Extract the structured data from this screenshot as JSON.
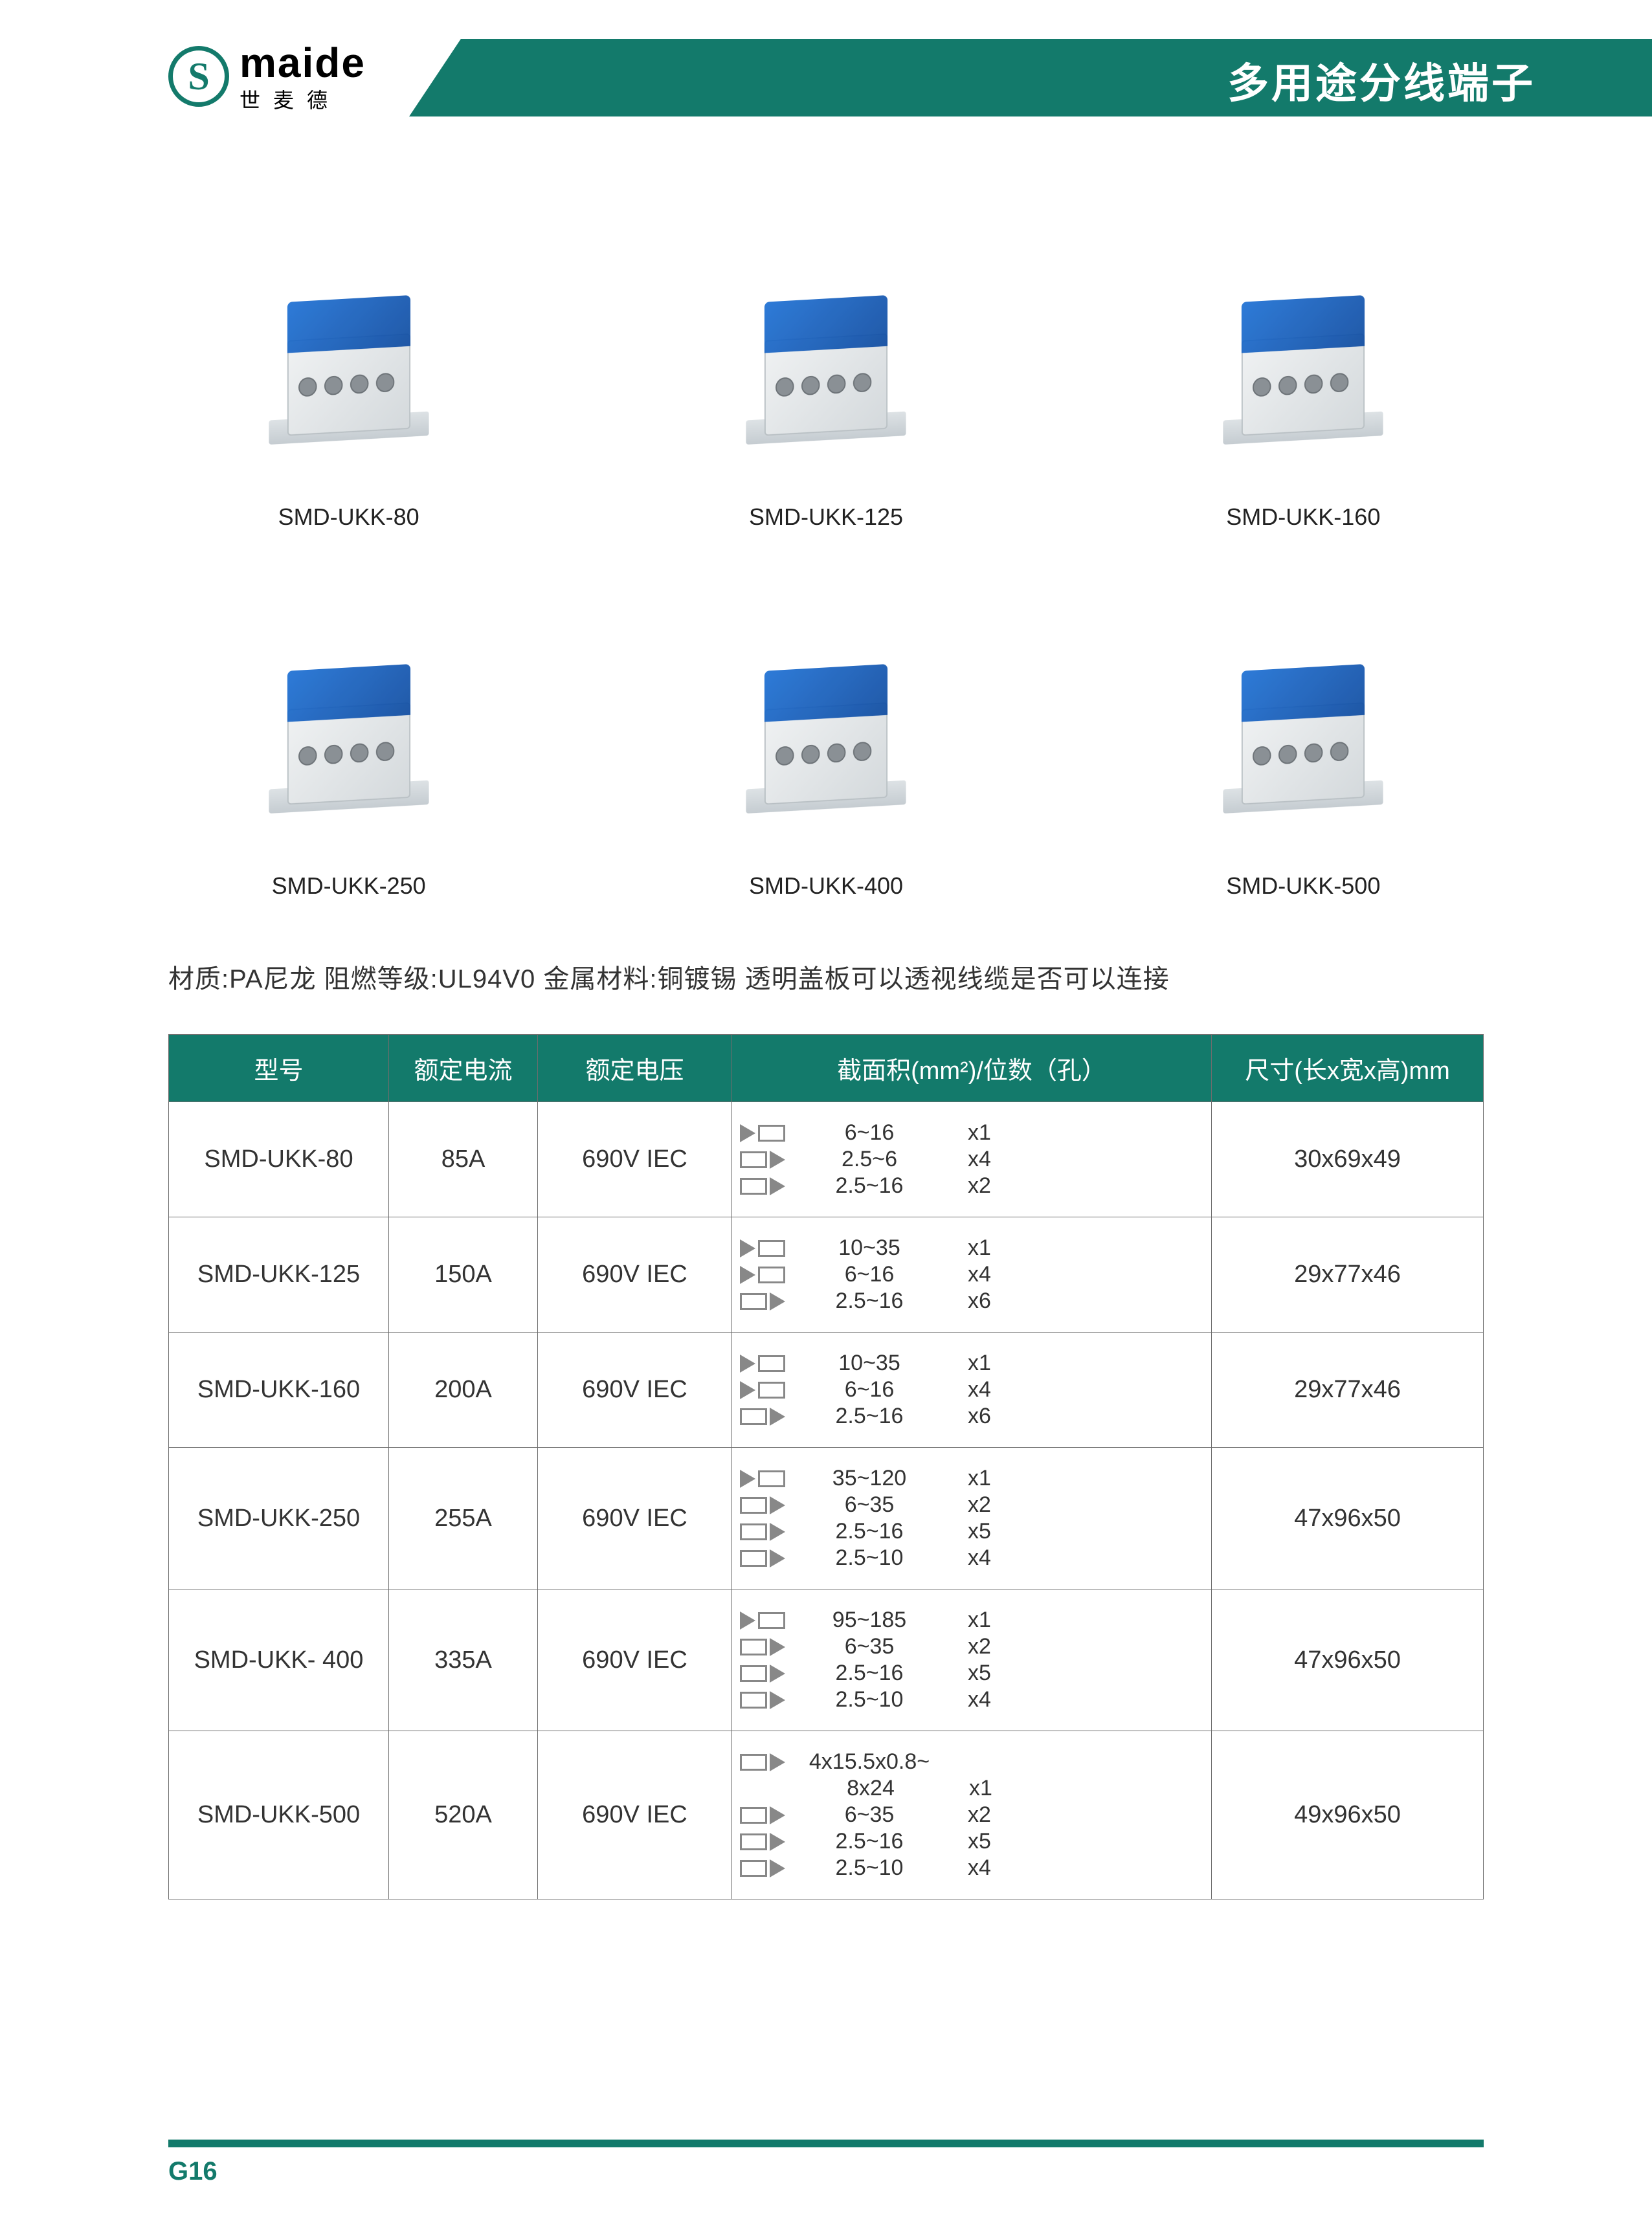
{
  "brand": {
    "mark": "S",
    "en": "maide",
    "cn": "世麦德"
  },
  "header_title": "多用途分线端子",
  "accent_color": "#137a6b",
  "product_blue": "#1b6fd4",
  "product_grey": "#d4d9dc",
  "products": [
    {
      "label": "SMD-UKK-80"
    },
    {
      "label": "SMD-UKK-125"
    },
    {
      "label": "SMD-UKK-160"
    },
    {
      "label": "SMD-UKK-250"
    },
    {
      "label": "SMD-UKK-400"
    },
    {
      "label": "SMD-UKK-500"
    }
  ],
  "material_line": "材质:PA尼龙   阻燃等级:UL94V0  金属材料:铜镀锡   透明盖板可以透视线缆是否可以连接",
  "columns": {
    "model": "型号",
    "current": "额定电流",
    "voltage": "额定电压",
    "cross": "截面积(mm²)/位数（孔）",
    "dims": "尺寸(长x宽x高)mm"
  },
  "rows": [
    {
      "model": "SMD-UKK-80",
      "current": "85A",
      "voltage": "690V IEC",
      "cross": [
        {
          "dir": "in",
          "range": "6~16",
          "count": "x1"
        },
        {
          "dir": "out",
          "range": "2.5~6",
          "count": "x4"
        },
        {
          "dir": "out",
          "range": "2.5~16",
          "count": "x2"
        }
      ],
      "dims": "30x69x49"
    },
    {
      "model": "SMD-UKK-125",
      "current": "150A",
      "voltage": "690V IEC",
      "cross": [
        {
          "dir": "in",
          "range": "10~35",
          "count": "x1"
        },
        {
          "dir": "in",
          "range": "6~16",
          "count": "x4"
        },
        {
          "dir": "out",
          "range": "2.5~16",
          "count": "x6"
        }
      ],
      "dims": "29x77x46"
    },
    {
      "model": "SMD-UKK-160",
      "current": "200A",
      "voltage": "690V IEC",
      "cross": [
        {
          "dir": "in",
          "range": "10~35",
          "count": "x1"
        },
        {
          "dir": "in",
          "range": "6~16",
          "count": "x4"
        },
        {
          "dir": "out",
          "range": "2.5~16",
          "count": "x6"
        }
      ],
      "dims": "29x77x46"
    },
    {
      "model": "SMD-UKK-250",
      "current": "255A",
      "voltage": "690V IEC",
      "cross": [
        {
          "dir": "in",
          "range": "35~120",
          "count": "x1"
        },
        {
          "dir": "out",
          "range": "6~35",
          "count": "x2"
        },
        {
          "dir": "out",
          "range": "2.5~16",
          "count": "x5"
        },
        {
          "dir": "out",
          "range": "2.5~10",
          "count": "x4"
        }
      ],
      "dims": "47x96x50"
    },
    {
      "model": "SMD-UKK- 400",
      "current": "335A",
      "voltage": "690V IEC",
      "cross": [
        {
          "dir": "in",
          "range": "95~185",
          "count": "x1"
        },
        {
          "dir": "out",
          "range": "6~35",
          "count": "x2"
        },
        {
          "dir": "out",
          "range": "2.5~16",
          "count": "x5"
        },
        {
          "dir": "out",
          "range": "2.5~10",
          "count": "x4"
        }
      ],
      "dims": "47x96x50"
    },
    {
      "model": "SMD-UKK-500",
      "current": "520A",
      "voltage": "690V IEC",
      "cross": [
        {
          "dir": "out",
          "range": "4x15.5x0.8~",
          "count": ""
        },
        {
          "dir": "",
          "range": "8x24",
          "count": "x1"
        },
        {
          "dir": "out",
          "range": "6~35",
          "count": "x2"
        },
        {
          "dir": "out",
          "range": "2.5~16",
          "count": "x5"
        },
        {
          "dir": "out",
          "range": "2.5~10",
          "count": "x4"
        }
      ],
      "dims": "49x96x50"
    }
  ],
  "page_number": "G16"
}
